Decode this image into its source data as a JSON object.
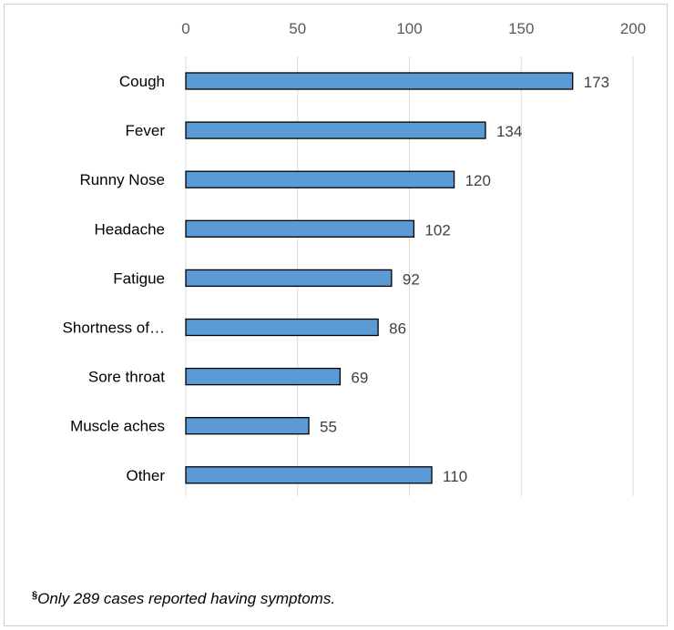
{
  "chart_data": {
    "type": "bar",
    "orientation": "horizontal",
    "categories": [
      "Cough",
      "Fever",
      "Runny Nose",
      "Headache",
      "Fatigue",
      "Shortness of…",
      "Sore throat",
      "Muscle aches",
      "Other"
    ],
    "values": [
      173,
      134,
      120,
      102,
      92,
      86,
      69,
      55,
      110
    ],
    "xlim": [
      0,
      200
    ],
    "xticks": [
      0,
      50,
      100,
      150,
      200
    ],
    "xtick_labels": [
      "0",
      "50",
      "100",
      "150",
      "200"
    ],
    "axis_position": "top",
    "grid": true,
    "bar_color": "#5B9BD5",
    "bar_edge_color": "#000000"
  },
  "footnote": {
    "marker": "§",
    "text": "Only 289 cases reported having symptoms."
  }
}
